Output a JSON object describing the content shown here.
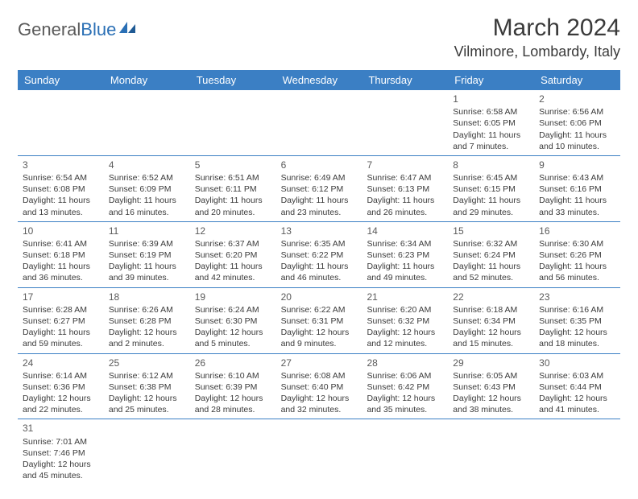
{
  "brand": {
    "part1": "General",
    "part2": "Blue"
  },
  "title": "March 2024",
  "location": "Vilminore, Lombardy, Italy",
  "colors": {
    "header_bg": "#3b7fc4",
    "header_text": "#ffffff",
    "week_border": "#3b7fc4",
    "text": "#3a3a3a",
    "logo_gray": "#5a5a5a",
    "logo_blue": "#2a6fb5",
    "background": "#ffffff"
  },
  "fonts": {
    "title_size": 30,
    "location_size": 18,
    "day_header_size": 13,
    "cell_size": 10.5,
    "daynum_size": 12
  },
  "day_names": [
    "Sunday",
    "Monday",
    "Tuesday",
    "Wednesday",
    "Thursday",
    "Friday",
    "Saturday"
  ],
  "weeks": [
    [
      null,
      null,
      null,
      null,
      null,
      {
        "n": "1",
        "sr": "Sunrise: 6:58 AM",
        "ss": "Sunset: 6:05 PM",
        "d1": "Daylight: 11 hours",
        "d2": "and 7 minutes."
      },
      {
        "n": "2",
        "sr": "Sunrise: 6:56 AM",
        "ss": "Sunset: 6:06 PM",
        "d1": "Daylight: 11 hours",
        "d2": "and 10 minutes."
      }
    ],
    [
      {
        "n": "3",
        "sr": "Sunrise: 6:54 AM",
        "ss": "Sunset: 6:08 PM",
        "d1": "Daylight: 11 hours",
        "d2": "and 13 minutes."
      },
      {
        "n": "4",
        "sr": "Sunrise: 6:52 AM",
        "ss": "Sunset: 6:09 PM",
        "d1": "Daylight: 11 hours",
        "d2": "and 16 minutes."
      },
      {
        "n": "5",
        "sr": "Sunrise: 6:51 AM",
        "ss": "Sunset: 6:11 PM",
        "d1": "Daylight: 11 hours",
        "d2": "and 20 minutes."
      },
      {
        "n": "6",
        "sr": "Sunrise: 6:49 AM",
        "ss": "Sunset: 6:12 PM",
        "d1": "Daylight: 11 hours",
        "d2": "and 23 minutes."
      },
      {
        "n": "7",
        "sr": "Sunrise: 6:47 AM",
        "ss": "Sunset: 6:13 PM",
        "d1": "Daylight: 11 hours",
        "d2": "and 26 minutes."
      },
      {
        "n": "8",
        "sr": "Sunrise: 6:45 AM",
        "ss": "Sunset: 6:15 PM",
        "d1": "Daylight: 11 hours",
        "d2": "and 29 minutes."
      },
      {
        "n": "9",
        "sr": "Sunrise: 6:43 AM",
        "ss": "Sunset: 6:16 PM",
        "d1": "Daylight: 11 hours",
        "d2": "and 33 minutes."
      }
    ],
    [
      {
        "n": "10",
        "sr": "Sunrise: 6:41 AM",
        "ss": "Sunset: 6:18 PM",
        "d1": "Daylight: 11 hours",
        "d2": "and 36 minutes."
      },
      {
        "n": "11",
        "sr": "Sunrise: 6:39 AM",
        "ss": "Sunset: 6:19 PM",
        "d1": "Daylight: 11 hours",
        "d2": "and 39 minutes."
      },
      {
        "n": "12",
        "sr": "Sunrise: 6:37 AM",
        "ss": "Sunset: 6:20 PM",
        "d1": "Daylight: 11 hours",
        "d2": "and 42 minutes."
      },
      {
        "n": "13",
        "sr": "Sunrise: 6:35 AM",
        "ss": "Sunset: 6:22 PM",
        "d1": "Daylight: 11 hours",
        "d2": "and 46 minutes."
      },
      {
        "n": "14",
        "sr": "Sunrise: 6:34 AM",
        "ss": "Sunset: 6:23 PM",
        "d1": "Daylight: 11 hours",
        "d2": "and 49 minutes."
      },
      {
        "n": "15",
        "sr": "Sunrise: 6:32 AM",
        "ss": "Sunset: 6:24 PM",
        "d1": "Daylight: 11 hours",
        "d2": "and 52 minutes."
      },
      {
        "n": "16",
        "sr": "Sunrise: 6:30 AM",
        "ss": "Sunset: 6:26 PM",
        "d1": "Daylight: 11 hours",
        "d2": "and 56 minutes."
      }
    ],
    [
      {
        "n": "17",
        "sr": "Sunrise: 6:28 AM",
        "ss": "Sunset: 6:27 PM",
        "d1": "Daylight: 11 hours",
        "d2": "and 59 minutes."
      },
      {
        "n": "18",
        "sr": "Sunrise: 6:26 AM",
        "ss": "Sunset: 6:28 PM",
        "d1": "Daylight: 12 hours",
        "d2": "and 2 minutes."
      },
      {
        "n": "19",
        "sr": "Sunrise: 6:24 AM",
        "ss": "Sunset: 6:30 PM",
        "d1": "Daylight: 12 hours",
        "d2": "and 5 minutes."
      },
      {
        "n": "20",
        "sr": "Sunrise: 6:22 AM",
        "ss": "Sunset: 6:31 PM",
        "d1": "Daylight: 12 hours",
        "d2": "and 9 minutes."
      },
      {
        "n": "21",
        "sr": "Sunrise: 6:20 AM",
        "ss": "Sunset: 6:32 PM",
        "d1": "Daylight: 12 hours",
        "d2": "and 12 minutes."
      },
      {
        "n": "22",
        "sr": "Sunrise: 6:18 AM",
        "ss": "Sunset: 6:34 PM",
        "d1": "Daylight: 12 hours",
        "d2": "and 15 minutes."
      },
      {
        "n": "23",
        "sr": "Sunrise: 6:16 AM",
        "ss": "Sunset: 6:35 PM",
        "d1": "Daylight: 12 hours",
        "d2": "and 18 minutes."
      }
    ],
    [
      {
        "n": "24",
        "sr": "Sunrise: 6:14 AM",
        "ss": "Sunset: 6:36 PM",
        "d1": "Daylight: 12 hours",
        "d2": "and 22 minutes."
      },
      {
        "n": "25",
        "sr": "Sunrise: 6:12 AM",
        "ss": "Sunset: 6:38 PM",
        "d1": "Daylight: 12 hours",
        "d2": "and 25 minutes."
      },
      {
        "n": "26",
        "sr": "Sunrise: 6:10 AM",
        "ss": "Sunset: 6:39 PM",
        "d1": "Daylight: 12 hours",
        "d2": "and 28 minutes."
      },
      {
        "n": "27",
        "sr": "Sunrise: 6:08 AM",
        "ss": "Sunset: 6:40 PM",
        "d1": "Daylight: 12 hours",
        "d2": "and 32 minutes."
      },
      {
        "n": "28",
        "sr": "Sunrise: 6:06 AM",
        "ss": "Sunset: 6:42 PM",
        "d1": "Daylight: 12 hours",
        "d2": "and 35 minutes."
      },
      {
        "n": "29",
        "sr": "Sunrise: 6:05 AM",
        "ss": "Sunset: 6:43 PM",
        "d1": "Daylight: 12 hours",
        "d2": "and 38 minutes."
      },
      {
        "n": "30",
        "sr": "Sunrise: 6:03 AM",
        "ss": "Sunset: 6:44 PM",
        "d1": "Daylight: 12 hours",
        "d2": "and 41 minutes."
      }
    ],
    [
      {
        "n": "31",
        "sr": "Sunrise: 7:01 AM",
        "ss": "Sunset: 7:46 PM",
        "d1": "Daylight: 12 hours",
        "d2": "and 45 minutes."
      },
      null,
      null,
      null,
      null,
      null,
      null
    ]
  ]
}
